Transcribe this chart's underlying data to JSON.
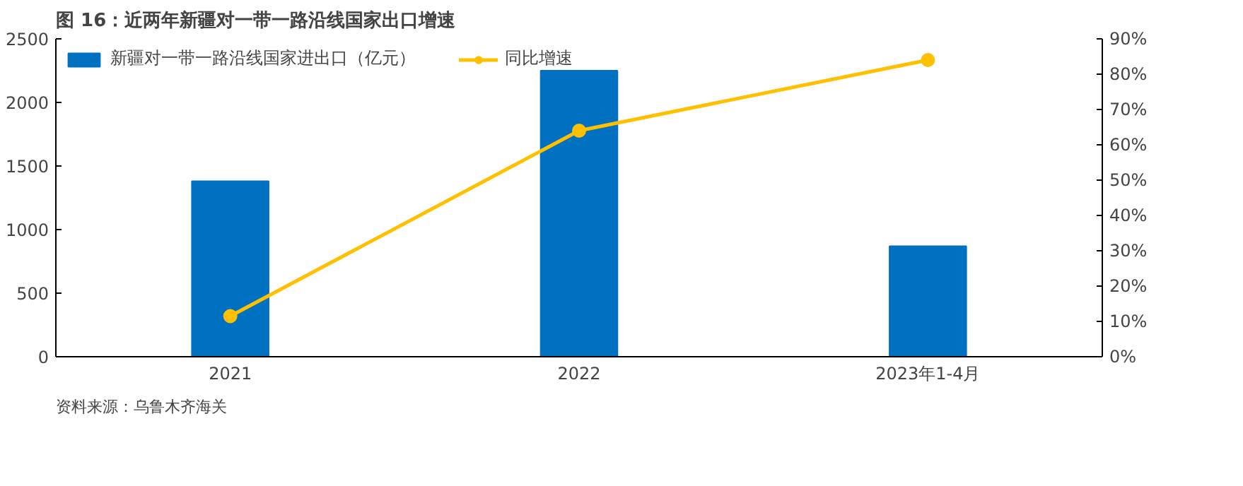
{
  "chart_data": {
    "type": "bar",
    "title": "图 16：近两年新疆对一带一路沿线国家出口增速",
    "categories": [
      "2021",
      "2022",
      "2023年1-4月"
    ],
    "series": [
      {
        "name": "新疆对一带一路沿线国家进出口（亿元）",
        "color": "#0070c0",
        "type": "bar",
        "values": [
          1380,
          2250,
          870
        ]
      },
      {
        "name": "同比增速",
        "color": "#ffc000",
        "type": "line",
        "axis": "y2",
        "marker": "circle",
        "values": [
          11.5,
          64,
          84
        ]
      }
    ],
    "ylim": [
      0,
      2500
    ],
    "yticks": [
      0,
      500,
      1000,
      1500,
      2000,
      2500
    ],
    "y2lim": [
      0,
      90
    ],
    "y2ticks": [
      {
        "value": 0,
        "label": "0%"
      },
      {
        "value": 10,
        "label": "10%"
      },
      {
        "value": 20,
        "label": "20%"
      },
      {
        "value": 30,
        "label": "30%"
      },
      {
        "value": 40,
        "label": "40%"
      },
      {
        "value": 50,
        "label": "50%"
      },
      {
        "value": 60,
        "label": "60%"
      },
      {
        "value": 70,
        "label": "70%"
      },
      {
        "value": 80,
        "label": "80%"
      },
      {
        "value": 90,
        "label": "90%"
      }
    ],
    "legend": "top",
    "grid": false,
    "annotations": [
      "资料来源：乌鲁木齐海关"
    ]
  }
}
